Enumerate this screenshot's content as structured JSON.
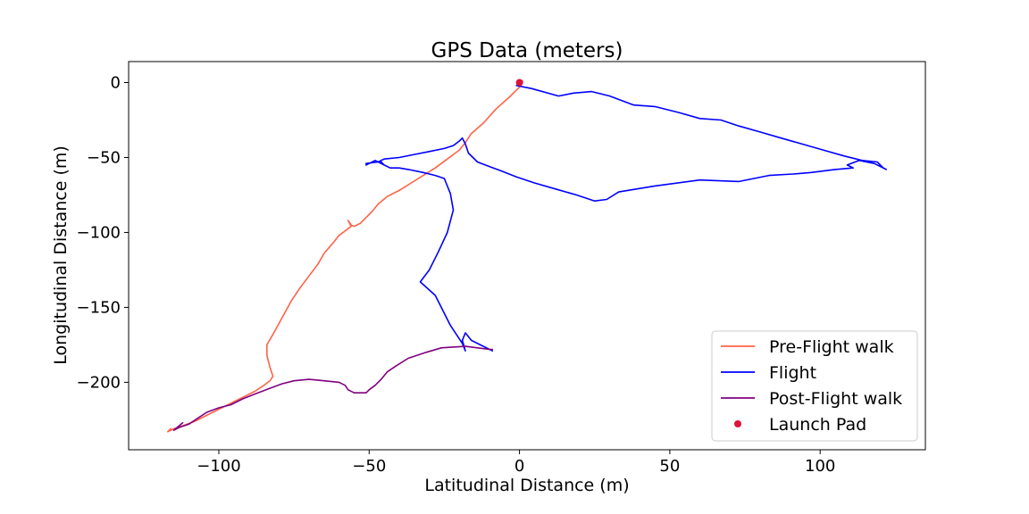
{
  "chart_data": {
    "type": "line",
    "title": "GPS Data (meters)",
    "xlabel": "Latitudinal Distance (m)",
    "ylabel": "Longitudinal Distance (m)",
    "xlim": [
      -130,
      135
    ],
    "ylim": [
      -245,
      14
    ],
    "x_ticks": [
      -100,
      -50,
      0,
      50,
      100
    ],
    "x_tick_labels": [
      "−100",
      "−50",
      "0",
      "50",
      "100"
    ],
    "y_ticks": [
      0,
      -50,
      -100,
      -150,
      -200
    ],
    "y_tick_labels": [
      "0",
      "−50",
      "−100",
      "−150",
      "−200"
    ],
    "grid": false,
    "legend_position": "lower-right",
    "series": [
      {
        "name": "Pre-Flight walk",
        "color": "#ff6347",
        "x": [
          1,
          0,
          -3,
          -8,
          -12,
          -16,
          -18,
          -20,
          -24,
          -28,
          -32,
          -36,
          -40,
          -44,
          -47,
          -49,
          -51,
          -53,
          -55,
          -56,
          -57,
          -56,
          -58,
          -60,
          -62,
          -65,
          -67,
          -70,
          -73,
          -76,
          -79,
          -82,
          -84,
          -84,
          -83,
          -82,
          -83,
          -85,
          -88,
          -92,
          -96,
          -100,
          -104,
          -108,
          -112,
          -115,
          -117,
          -116
        ],
        "y": [
          1,
          -3,
          -9,
          -18,
          -27,
          -34,
          -40,
          -45,
          -51,
          -57,
          -62,
          -67,
          -72,
          -76,
          -81,
          -86,
          -90,
          -94,
          -96,
          -95,
          -92,
          -96,
          -99,
          -102,
          -107,
          -114,
          -121,
          -129,
          -137,
          -146,
          -157,
          -168,
          -175,
          -182,
          -190,
          -196,
          -199,
          -202,
          -206,
          -210,
          -214,
          -218,
          -222,
          -226,
          -229,
          -231,
          -233,
          -231
        ]
      },
      {
        "name": "Flight",
        "color": "#0000ff",
        "x": [
          -1,
          4,
          13,
          18,
          24,
          30,
          38,
          45,
          53,
          60,
          67,
          73,
          80,
          87,
          94,
          101,
          108,
          114,
          119,
          121,
          122,
          118,
          113,
          109,
          111,
          105,
          97,
          91,
          83,
          73,
          60,
          45,
          33,
          29,
          25,
          19,
          12,
          5,
          -1,
          -6,
          -10,
          -14,
          -17,
          -18,
          -19,
          -20,
          -22,
          -25,
          -30,
          -35,
          -40,
          -45,
          -47,
          -51,
          -51,
          -48,
          -45,
          -46,
          -45,
          -43,
          -40,
          -37,
          -32,
          -28,
          -25,
          -23,
          -22,
          -24,
          -27,
          -30,
          -33,
          -28,
          -23,
          -19,
          -18,
          -19,
          -18,
          -16,
          -10,
          -9
        ],
        "y": [
          -2,
          -4,
          -9,
          -7,
          -6,
          -9,
          -15,
          -16,
          -20,
          -24,
          -25,
          -29,
          -33,
          -37,
          -41,
          -45,
          -49,
          -52,
          -53,
          -57,
          -58,
          -54,
          -52,
          -55,
          -57,
          -58,
          -60,
          -61,
          -62,
          -66,
          -65,
          -69,
          -73,
          -78,
          -79,
          -75,
          -71,
          -67,
          -63,
          -59,
          -56,
          -53,
          -47,
          -41,
          -37,
          -39,
          -42,
          -44,
          -46,
          -48,
          -50,
          -51,
          -53,
          -54,
          -55,
          -52,
          -55,
          -53,
          -55,
          -57,
          -57,
          -58,
          -60,
          -62,
          -64,
          -74,
          -85,
          -100,
          -113,
          -125,
          -133,
          -142,
          -162,
          -174,
          -179,
          -172,
          -167,
          -172,
          -178,
          -179
        ]
      },
      {
        "name": "Post-Flight walk",
        "color": "#800080",
        "x": [
          -9,
          -10,
          -14,
          -18,
          -26,
          -31,
          -37,
          -41,
          -44,
          -46,
          -48,
          -50,
          -51,
          -55,
          -57,
          -58,
          -60,
          -65,
          -70,
          -75,
          -79,
          -83,
          -87,
          -92,
          -96,
          -100,
          -104,
          -107,
          -110,
          -113,
          -115,
          -112
        ],
        "y": [
          -178,
          -178,
          -177,
          -176,
          -177,
          -180,
          -184,
          -189,
          -193,
          -198,
          -202,
          -205,
          -207,
          -207,
          -205,
          -202,
          -200,
          -199,
          -198,
          -199,
          -201,
          -204,
          -207,
          -211,
          -215,
          -217,
          -220,
          -224,
          -228,
          -230,
          -232,
          -227
        ]
      }
    ],
    "points": [
      {
        "name": "Launch Pad",
        "color": "#dc143c",
        "x": 0,
        "y": 0
      }
    ]
  }
}
